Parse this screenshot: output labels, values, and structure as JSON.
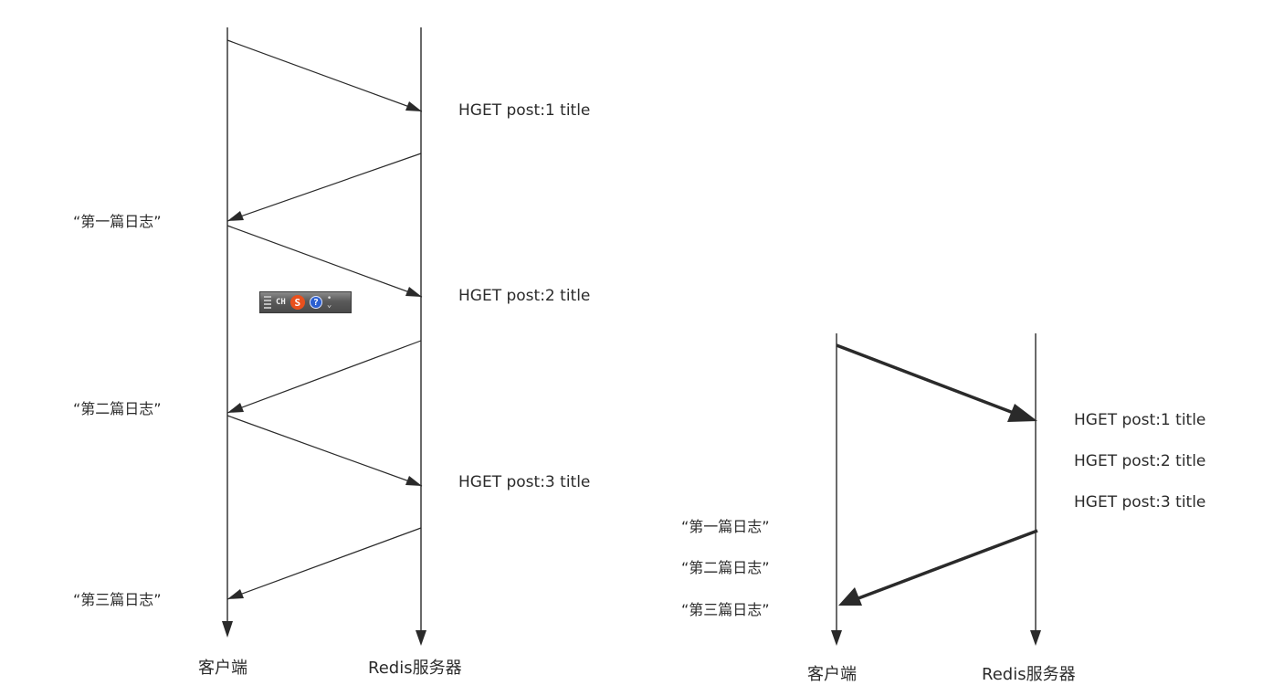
{
  "left_diagram": {
    "client_label": "客户端",
    "server_label": "Redis服务器",
    "commands": [
      "HGET post:1 title",
      "HGET post:2 title",
      "HGET post:3 title"
    ],
    "responses": [
      "“第一篇日志”",
      "“第二篇日志”",
      "“第三篇日志”"
    ]
  },
  "right_diagram": {
    "client_label": "客户端",
    "server_label": "Redis服务器",
    "commands": [
      "HGET post:1 title",
      "HGET post:2 title",
      "HGET post:3 title"
    ],
    "responses": [
      "“第一篇日志”",
      "“第二篇日志”",
      "“第三篇日志”"
    ]
  },
  "ime_toolbar": {
    "mode_label": "CH",
    "logo_letter": "S",
    "help_symbol": "?"
  }
}
